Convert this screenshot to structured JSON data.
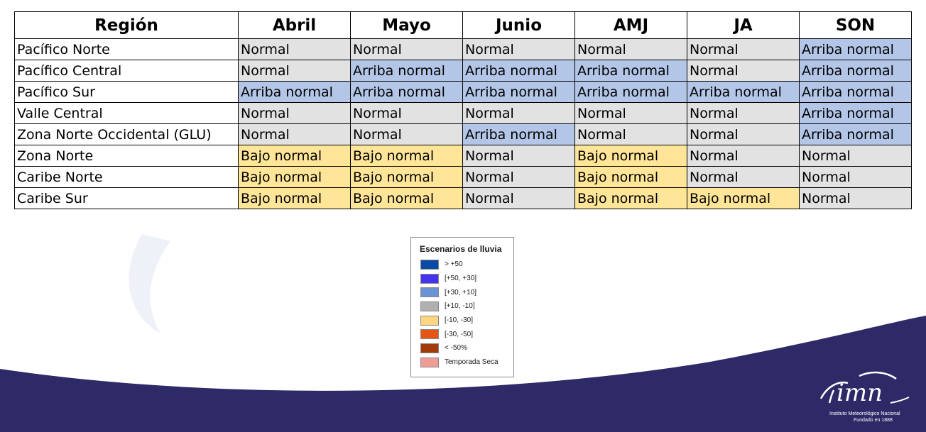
{
  "table": {
    "headers": [
      "Región",
      "Abril",
      "Mayo",
      "Junio",
      "AMJ",
      "JA",
      "SON"
    ],
    "rows": [
      {
        "region": "Pacífico Norte",
        "values": [
          "Normal",
          "Normal",
          "Normal",
          "Normal",
          "Normal",
          "Arriba normal"
        ]
      },
      {
        "region": "Pacífico Central",
        "values": [
          "Normal",
          "Arriba normal",
          "Arriba normal",
          "Arriba normal",
          "Normal",
          "Arriba normal"
        ]
      },
      {
        "region": "Pacífico Sur",
        "values": [
          "Arriba normal",
          "Arriba normal",
          "Arriba normal",
          "Arriba normal",
          "Arriba normal",
          "Arriba normal"
        ]
      },
      {
        "region": "Valle Central",
        "values": [
          "Normal",
          "Normal",
          "Normal",
          "Normal",
          "Normal",
          "Arriba normal"
        ]
      },
      {
        "region": "Zona Norte Occidental (GLU)",
        "values": [
          "Normal",
          "Normal",
          "Arriba normal",
          "Normal",
          "Normal",
          "Arriba normal"
        ]
      },
      {
        "region": "Zona Norte",
        "values": [
          "Bajo normal",
          "Bajo normal",
          "Normal",
          "Bajo normal",
          "Normal",
          "Normal"
        ]
      },
      {
        "region": "Caribe Norte",
        "values": [
          "Bajo normal",
          "Bajo normal",
          "Normal",
          "Bajo normal",
          "Normal",
          "Normal"
        ]
      },
      {
        "region": "Caribe Sur",
        "values": [
          "Bajo normal",
          "Bajo normal",
          "Normal",
          "Bajo normal",
          "Bajo normal",
          "Normal"
        ]
      }
    ],
    "cell_colors": {
      "Normal": "#e2e2e2",
      "Arriba normal": "#b4c6e7",
      "Bajo normal": "#fee598"
    }
  },
  "legend": {
    "title": "Escenarios de lluvia",
    "items": [
      {
        "label": "> +50",
        "color": "#0a4aa6"
      },
      {
        "label": "[+50, +30]",
        "color": "#4433ee"
      },
      {
        "label": "[+30, +10]",
        "color": "#6a93d6"
      },
      {
        "label": "[+10, -10]",
        "color": "#b0b0b0"
      },
      {
        "label": "[-10, -30]",
        "color": "#fed581"
      },
      {
        "label": "[-30, -50]",
        "color": "#e65513"
      },
      {
        "label": "< -50%",
        "color": "#a23a0c"
      },
      {
        "label": "Temporada Seca",
        "color": "#ee9c95"
      }
    ]
  },
  "logo": {
    "text": "imn",
    "line1": "Instituto Meteorológico Nacional",
    "line2": "Fundado en 1888"
  },
  "colors": {
    "band": "#2e2a68",
    "swoosh": "#eef1f8"
  }
}
